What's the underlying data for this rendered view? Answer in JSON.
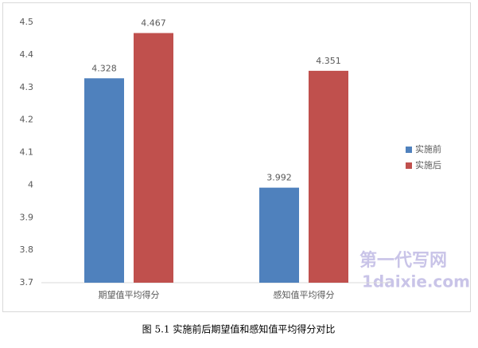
{
  "chart_data": {
    "type": "bar",
    "categories": [
      "期望值平均得分",
      "感知值平均得分"
    ],
    "series": [
      {
        "name": "实施前",
        "color": "#4f81bd",
        "values": [
          4.328,
          3.992
        ]
      },
      {
        "name": "实施后",
        "color": "#c0504d",
        "values": [
          4.467,
          4.351
        ]
      }
    ],
    "ylim": [
      3.7,
      4.5
    ],
    "yticks": [
      3.7,
      3.8,
      3.9,
      4,
      4.1,
      4.2,
      4.3,
      4.4,
      4.5
    ],
    "grid": false,
    "legend": "right"
  },
  "caption": "图 5.1 实施前后期望值和感知值平均得分对比",
  "watermark": [
    "第一代写网",
    "1daixie.com"
  ]
}
